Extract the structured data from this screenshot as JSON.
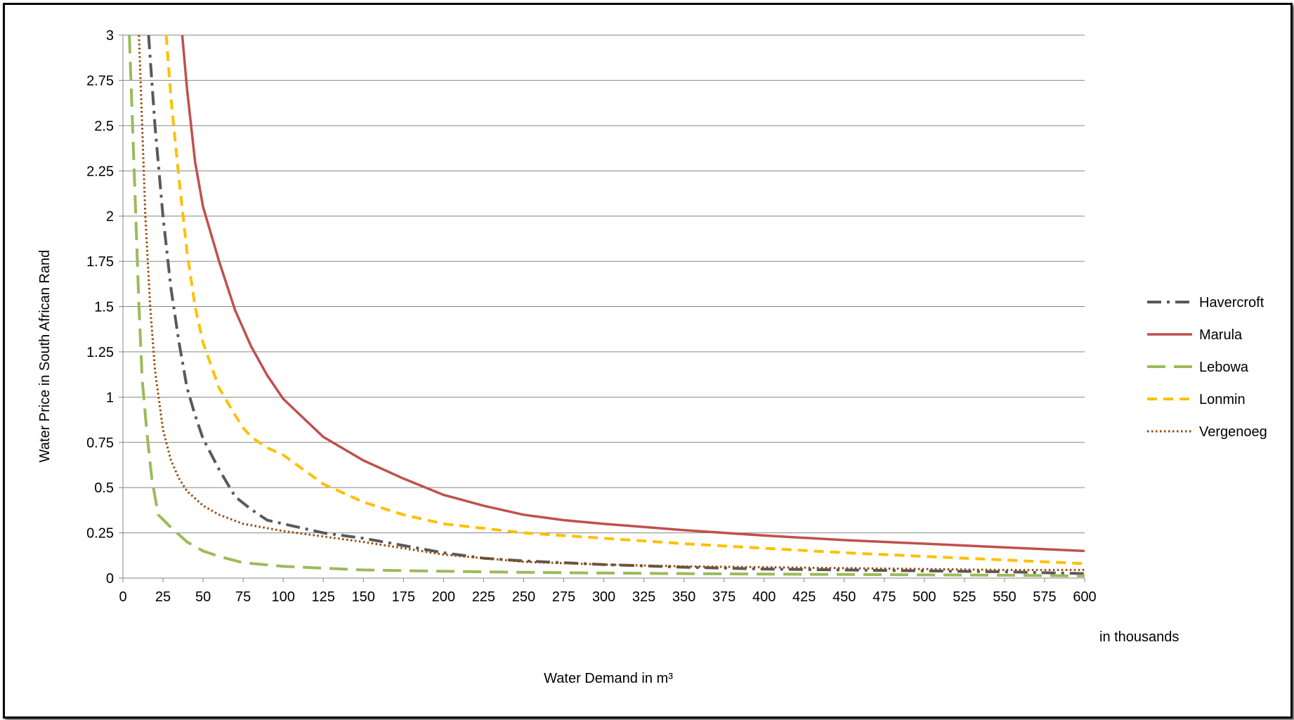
{
  "chart_data": {
    "type": "line",
    "title": "",
    "xlabel": "Water Demand in m³",
    "x_unit_note": "in thousands",
    "ylabel": "Water Price in South African Rand",
    "xlim": [
      0,
      600
    ],
    "ylim": [
      0,
      3
    ],
    "x_ticks": [
      "0",
      "25",
      "50",
      "75",
      "100",
      "125",
      "150",
      "175",
      "200",
      "225",
      "250",
      "275",
      "300",
      "325",
      "350",
      "375",
      "400",
      "425",
      "450",
      "475",
      "500",
      "525",
      "550",
      "575",
      "600"
    ],
    "y_ticks": [
      "0",
      "0.25",
      "0.5",
      "0.75",
      "1",
      "1.25",
      "1.5",
      "1.75",
      "2",
      "2.25",
      "2.5",
      "2.75",
      "3"
    ],
    "grid": "horizontal",
    "legend_position": "right",
    "series": [
      {
        "name": "Havercroft",
        "color": "#595959",
        "style": "dash-dot",
        "points": [
          [
            16,
            3.0
          ],
          [
            20,
            2.5
          ],
          [
            25,
            2.0
          ],
          [
            30,
            1.6
          ],
          [
            35,
            1.3
          ],
          [
            40,
            1.05
          ],
          [
            45,
            0.9
          ],
          [
            50,
            0.77
          ],
          [
            60,
            0.6
          ],
          [
            70,
            0.45
          ],
          [
            80,
            0.38
          ],
          [
            90,
            0.32
          ],
          [
            100,
            0.3
          ],
          [
            125,
            0.25
          ],
          [
            150,
            0.22
          ],
          [
            175,
            0.18
          ],
          [
            200,
            0.14
          ],
          [
            225,
            0.11
          ],
          [
            250,
            0.095
          ],
          [
            300,
            0.075
          ],
          [
            350,
            0.06
          ],
          [
            400,
            0.05
          ],
          [
            450,
            0.045
          ],
          [
            500,
            0.04
          ],
          [
            550,
            0.035
          ],
          [
            600,
            0.025
          ]
        ]
      },
      {
        "name": "Marula",
        "color": "#C0504D",
        "style": "solid",
        "points": [
          [
            37,
            3.0
          ],
          [
            40,
            2.7
          ],
          [
            45,
            2.3
          ],
          [
            50,
            2.05
          ],
          [
            55,
            1.9
          ],
          [
            60,
            1.75
          ],
          [
            70,
            1.48
          ],
          [
            80,
            1.28
          ],
          [
            90,
            1.12
          ],
          [
            100,
            0.99
          ],
          [
            125,
            0.78
          ],
          [
            150,
            0.65
          ],
          [
            175,
            0.55
          ],
          [
            200,
            0.46
          ],
          [
            225,
            0.4
          ],
          [
            250,
            0.35
          ],
          [
            275,
            0.32
          ],
          [
            300,
            0.3
          ],
          [
            350,
            0.265
          ],
          [
            400,
            0.235
          ],
          [
            450,
            0.21
          ],
          [
            500,
            0.19
          ],
          [
            550,
            0.17
          ],
          [
            600,
            0.15
          ]
        ]
      },
      {
        "name": "Lebowa",
        "color": "#9BBB59",
        "style": "long-dash",
        "points": [
          [
            4,
            3.0
          ],
          [
            6,
            2.5
          ],
          [
            8,
            2.0
          ],
          [
            10,
            1.5
          ],
          [
            12,
            1.1
          ],
          [
            15,
            0.8
          ],
          [
            18,
            0.55
          ],
          [
            22,
            0.35
          ],
          [
            30,
            0.28
          ],
          [
            40,
            0.2
          ],
          [
            50,
            0.15
          ],
          [
            60,
            0.12
          ],
          [
            75,
            0.085
          ],
          [
            100,
            0.065
          ],
          [
            150,
            0.045
          ],
          [
            200,
            0.038
          ],
          [
            250,
            0.032
          ],
          [
            300,
            0.028
          ],
          [
            350,
            0.025
          ],
          [
            400,
            0.022
          ],
          [
            450,
            0.02
          ],
          [
            500,
            0.018
          ],
          [
            550,
            0.016
          ],
          [
            600,
            0.012
          ]
        ]
      },
      {
        "name": "Lonmin",
        "color": "#FFC000",
        "style": "dash",
        "points": [
          [
            27,
            3.0
          ],
          [
            30,
            2.65
          ],
          [
            35,
            2.2
          ],
          [
            40,
            1.8
          ],
          [
            45,
            1.5
          ],
          [
            50,
            1.3
          ],
          [
            60,
            1.05
          ],
          [
            70,
            0.9
          ],
          [
            75,
            0.83
          ],
          [
            80,
            0.78
          ],
          [
            90,
            0.72
          ],
          [
            100,
            0.68
          ],
          [
            125,
            0.52
          ],
          [
            150,
            0.42
          ],
          [
            175,
            0.35
          ],
          [
            200,
            0.3
          ],
          [
            250,
            0.25
          ],
          [
            300,
            0.22
          ],
          [
            350,
            0.19
          ],
          [
            400,
            0.165
          ],
          [
            450,
            0.14
          ],
          [
            500,
            0.12
          ],
          [
            550,
            0.1
          ],
          [
            600,
            0.08
          ]
        ]
      },
      {
        "name": "Vergenoeg",
        "color": "#984807",
        "style": "dotted",
        "points": [
          [
            10,
            3.0
          ],
          [
            12,
            2.5
          ],
          [
            14,
            2.0
          ],
          [
            17,
            1.5
          ],
          [
            20,
            1.15
          ],
          [
            23,
            0.95
          ],
          [
            25,
            0.82
          ],
          [
            30,
            0.65
          ],
          [
            35,
            0.55
          ],
          [
            40,
            0.48
          ],
          [
            50,
            0.4
          ],
          [
            60,
            0.35
          ],
          [
            75,
            0.3
          ],
          [
            100,
            0.26
          ],
          [
            150,
            0.2
          ],
          [
            200,
            0.13
          ],
          [
            250,
            0.09
          ],
          [
            300,
            0.075
          ],
          [
            350,
            0.065
          ],
          [
            400,
            0.06
          ],
          [
            450,
            0.055
          ],
          [
            500,
            0.05
          ],
          [
            550,
            0.045
          ],
          [
            600,
            0.045
          ]
        ]
      }
    ]
  }
}
